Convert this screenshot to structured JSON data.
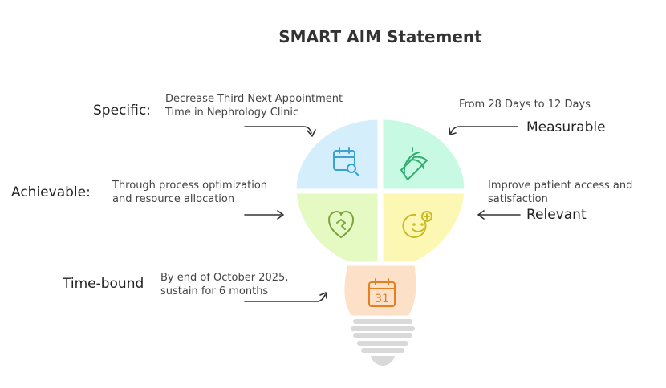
{
  "title": "SMART AIM Statement",
  "items": {
    "specific": {
      "label": "Specific:",
      "desc_line1": "Decrease Third Next Appointment",
      "desc_line2": "Time in Nephrology Clinic"
    },
    "measurable": {
      "label": "Measurable",
      "desc_line1": "From 28 Days to 12 Days"
    },
    "achievable": {
      "label": "Achievable:",
      "desc_line1": "Through process optimization",
      "desc_line2": "and resource allocation"
    },
    "relevant": {
      "label": "Relevant",
      "desc_line1": "Improve patient access and",
      "desc_line2": "satisfaction"
    },
    "timebound": {
      "label": "Time-bound",
      "desc_line1": "By end of October 2025,",
      "desc_line2": "sustain for 6 months",
      "calendar_number": "31"
    }
  },
  "colors": {
    "specific": "#d4effb",
    "measurable": "#c8f9e2",
    "achievable": "#e5f9c3",
    "relevant": "#fdf7b4",
    "timebound": "#fde0c8",
    "bulb_base": "#d9d9d9"
  },
  "icons": {
    "specific": "calendar-search-icon",
    "measurable": "protractor-icon",
    "achievable": "heart-puzzle-icon",
    "relevant": "smiley-plus-icon",
    "timebound": "calendar-31-icon"
  }
}
